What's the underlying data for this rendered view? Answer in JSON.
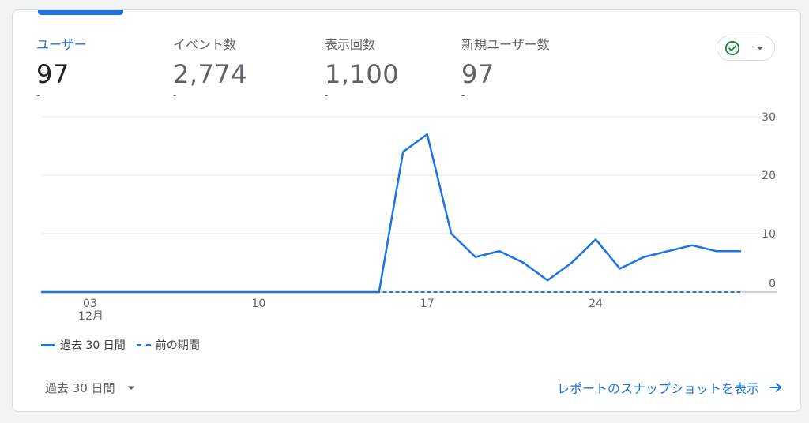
{
  "metrics": [
    {
      "label": "ユーザー",
      "value": "97",
      "change": "-",
      "active": true
    },
    {
      "label": "イベント数",
      "value": "2,774",
      "change": "-",
      "active": false
    },
    {
      "label": "表示回数",
      "value": "1,100",
      "change": "-",
      "active": false
    },
    {
      "label": "新規ユーザー数",
      "value": "97",
      "change": "-",
      "active": false
    }
  ],
  "status_icon": "check-circle-icon",
  "colors": {
    "accent": "#1a73e8",
    "grid": "#e8eaed",
    "check": "#188038"
  },
  "legend": {
    "current": "過去 30 日間",
    "previous": "前の期間"
  },
  "footer": {
    "period_label": "過去 30 日間",
    "snapshot_link": "レポートのスナップショットを表示"
  },
  "chart_data": {
    "type": "line",
    "x": [
      "12/01",
      "12/02",
      "12/03",
      "12/04",
      "12/05",
      "12/06",
      "12/07",
      "12/08",
      "12/09",
      "12/10",
      "12/11",
      "12/12",
      "12/13",
      "12/14",
      "12/15",
      "12/16",
      "12/17",
      "12/18",
      "12/19",
      "12/20",
      "12/21",
      "12/22",
      "12/23",
      "12/24",
      "12/25",
      "12/26",
      "12/27",
      "12/28",
      "12/29",
      "12/30"
    ],
    "series": [
      {
        "name": "過去 30 日間",
        "style": "solid",
        "values": [
          0,
          0,
          0,
          0,
          0,
          0,
          0,
          0,
          0,
          0,
          0,
          0,
          0,
          0,
          0,
          24,
          27,
          10,
          6,
          7,
          5,
          2,
          5,
          9,
          4,
          6,
          7,
          8,
          7,
          7
        ]
      },
      {
        "name": "前の期間",
        "style": "dashed",
        "values": [
          0,
          0,
          0,
          0,
          0,
          0,
          0,
          0,
          0,
          0,
          0,
          0,
          0,
          0,
          0,
          0,
          0,
          0,
          0,
          0,
          0,
          0,
          0,
          0,
          0,
          0,
          0,
          0,
          0,
          0
        ]
      }
    ],
    "x_ticks": [
      {
        "index": 2,
        "label": "03",
        "sublabel": "12月"
      },
      {
        "index": 9,
        "label": "10",
        "sublabel": ""
      },
      {
        "index": 16,
        "label": "17",
        "sublabel": ""
      },
      {
        "index": 23,
        "label": "24",
        "sublabel": ""
      }
    ],
    "y_ticks": [
      0,
      10,
      20,
      30
    ],
    "ylim": [
      0,
      30
    ],
    "y_axis_side": "right",
    "grid": true
  }
}
